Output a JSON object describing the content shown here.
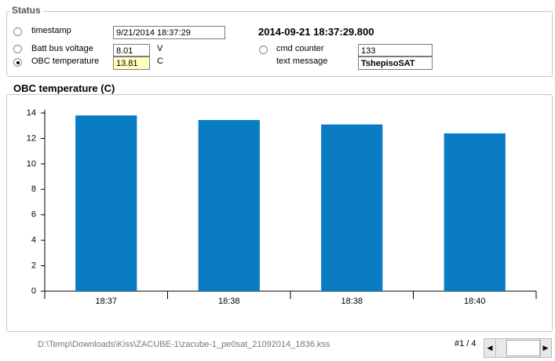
{
  "status": {
    "title": "Status",
    "timestamp": {
      "label": "timestamp",
      "value": "9/21/2014 18:37:29",
      "full": "2014-09-21 18:37:29.800"
    },
    "batt": {
      "label": "Batt bus voltage",
      "value": "8.01",
      "unit": "V"
    },
    "obc": {
      "label": "OBC temperature",
      "value": "13.81",
      "unit": "C"
    },
    "cmd": {
      "label": "cmd counter",
      "value": "133"
    },
    "text": {
      "label": "text message",
      "value": "TshepisoSAT"
    }
  },
  "chart_data": {
    "type": "bar",
    "title": "OBC temperature   (C)",
    "categories": [
      "18:37",
      "18:38",
      "18:38",
      "18:40"
    ],
    "values": [
      13.81,
      13.45,
      13.1,
      12.4
    ],
    "color": "#0a7cc4",
    "ylim": [
      0,
      14
    ],
    "yticks": [
      0,
      2,
      4,
      6,
      8,
      10,
      12,
      14
    ],
    "grid": false
  },
  "footer": {
    "path": "D:\\Temp\\Downloads\\Kiss\\ZACUBE-1\\zacube-1_pe0sat_21092014_1836.kss",
    "page": "#1 / 4"
  }
}
